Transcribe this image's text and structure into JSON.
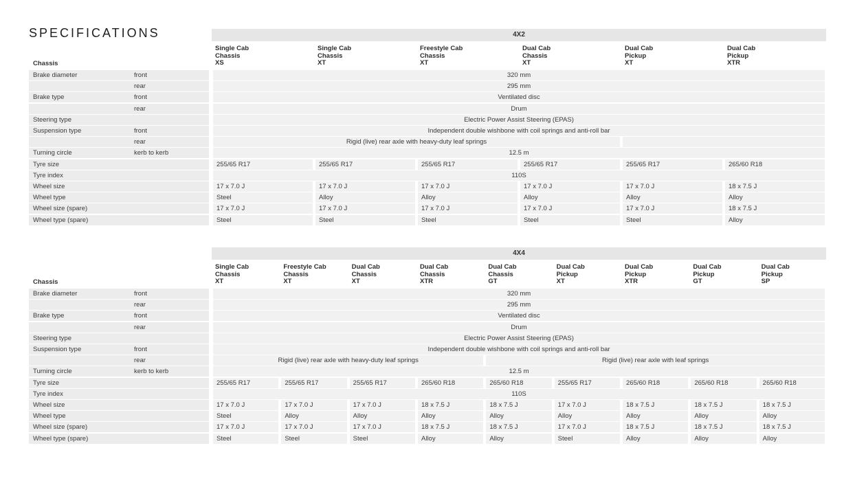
{
  "page": {
    "title": "SPECIFICATIONS"
  },
  "tables": [
    {
      "group": "4X2",
      "chassis_label": "Chassis",
      "columns": [
        [
          "Single Cab",
          "Chassis",
          "XS"
        ],
        [
          "Single Cab",
          "Chassis",
          "XT"
        ],
        [
          "Freestyle Cab",
          "Chassis",
          "XT"
        ],
        [
          "Dual Cab",
          "Chassis",
          "XT"
        ],
        [
          "Dual Cab",
          "Pickup",
          "XT"
        ],
        [
          "Dual Cab",
          "Pickup",
          "XTR"
        ]
      ],
      "rows": [
        {
          "label": "Brake diameter",
          "sub": "front",
          "cells": [
            {
              "span": [
                0,
                6
              ],
              "text": "320 mm",
              "center": true
            }
          ]
        },
        {
          "label": "",
          "sub": "rear",
          "cells": [
            {
              "span": [
                0,
                6
              ],
              "text": "295 mm",
              "center": true
            }
          ]
        },
        {
          "label": "Brake type",
          "sub": "front",
          "cells": [
            {
              "span": [
                0,
                6
              ],
              "text": "Ventilated disc",
              "center": true
            }
          ]
        },
        {
          "label": "",
          "sub": "rear",
          "cells": [
            {
              "span": [
                0,
                6
              ],
              "text": "Drum",
              "center": true
            }
          ]
        },
        {
          "label": "Steering type",
          "sub": "",
          "cells": [
            {
              "span": [
                0,
                6
              ],
              "text": "Electric Power Assist Steering (EPAS)",
              "center": true
            }
          ]
        },
        {
          "label": "Suspension type",
          "sub": "front",
          "cells": [
            {
              "span": [
                0,
                6
              ],
              "text": "Independent double wishbone with coil springs and anti-roll bar",
              "center": true
            }
          ]
        },
        {
          "label": "",
          "sub": "rear",
          "cells": [
            {
              "span": [
                0,
                4
              ],
              "text": "Rigid (live) rear axle with heavy-duty leaf springs",
              "center": true
            },
            {
              "span": [
                4,
                6
              ],
              "text": "",
              "center": true
            }
          ]
        },
        {
          "label": "Turning circle",
          "sub": "kerb to kerb",
          "cells": [
            {
              "span": [
                0,
                6
              ],
              "text": "12.5 m",
              "center": true
            }
          ]
        },
        {
          "label": "Tyre size",
          "sub": "",
          "cells": [
            "255/65 R17",
            "255/65 R17",
            "255/65 R17",
            "255/65 R17",
            "255/65 R17",
            "265/60 R18"
          ]
        },
        {
          "label": "Tyre index",
          "sub": "",
          "cells": [
            {
              "span": [
                0,
                6
              ],
              "text": "110S",
              "center": true
            }
          ]
        },
        {
          "label": "Wheel size",
          "sub": "",
          "cells": [
            "17 x 7.0 J",
            "17 x 7.0 J",
            "17 x 7.0 J",
            "17 x 7.0 J",
            "17 x 7.0 J",
            "18 x 7.5 J"
          ]
        },
        {
          "label": "Wheel type",
          "sub": "",
          "cells": [
            "Steel",
            "Alloy",
            "Alloy",
            "Alloy",
            "Alloy",
            "Alloy"
          ]
        },
        {
          "label": "Wheel size (spare)",
          "sub": "",
          "cells": [
            "17 x 7.0 J",
            "17 x 7.0 J",
            "17 x 7.0 J",
            "17 x 7.0 J",
            "17 x 7.0 J",
            "18 x 7.5 J"
          ]
        },
        {
          "label": "Wheel type (spare)",
          "sub": "",
          "cells": [
            "Steel",
            "Steel",
            "Steel",
            "Steel",
            "Steel",
            "Alloy"
          ]
        }
      ]
    },
    {
      "group": "4X4",
      "chassis_label": "Chassis",
      "columns": [
        [
          "Single Cab",
          "Chassis",
          "XT"
        ],
        [
          "Freestyle Cab",
          "Chassis",
          "XT"
        ],
        [
          "Dual Cab",
          "Chassis",
          "XT"
        ],
        [
          "Dual Cab",
          "Chassis",
          "XTR"
        ],
        [
          "Dual Cab",
          "Chassis",
          "GT"
        ],
        [
          "Dual Cab",
          "Pickup",
          "XT"
        ],
        [
          "Dual Cab",
          "Pickup",
          "XTR"
        ],
        [
          "Dual Cab",
          "Pickup",
          "GT"
        ],
        [
          "Dual Cab",
          "Pickup",
          "SP"
        ]
      ],
      "rows": [
        {
          "label": "Brake diameter",
          "sub": "front",
          "cells": [
            {
              "span": [
                0,
                9
              ],
              "text": "320 mm",
              "center": true
            }
          ]
        },
        {
          "label": "",
          "sub": "rear",
          "cells": [
            {
              "span": [
                0,
                9
              ],
              "text": "295 mm",
              "center": true
            }
          ]
        },
        {
          "label": "Brake type",
          "sub": "front",
          "cells": [
            {
              "span": [
                0,
                9
              ],
              "text": "Ventilated disc",
              "center": true
            }
          ]
        },
        {
          "label": "",
          "sub": "rear",
          "cells": [
            {
              "span": [
                0,
                9
              ],
              "text": "Drum",
              "center": true
            }
          ]
        },
        {
          "label": "Steering type",
          "sub": "",
          "cells": [
            {
              "span": [
                0,
                9
              ],
              "text": "Electric Power Assist Steering (EPAS)",
              "center": true
            }
          ]
        },
        {
          "label": "Suspension type",
          "sub": "front",
          "cells": [
            {
              "span": [
                0,
                9
              ],
              "text": "Independent double wishbone with coil springs and anti-roll bar",
              "center": true
            }
          ]
        },
        {
          "label": "",
          "sub": "rear",
          "cells": [
            {
              "span": [
                0,
                4
              ],
              "text": "Rigid (live) rear axle with heavy-duty leaf springs",
              "center": true
            },
            {
              "span": [
                4,
                9
              ],
              "text": "Rigid (live) rear axle with leaf springs",
              "center": true
            }
          ]
        },
        {
          "label": "Turning circle",
          "sub": "kerb to kerb",
          "cells": [
            {
              "span": [
                0,
                9
              ],
              "text": "12.5 m",
              "center": true
            }
          ]
        },
        {
          "label": "Tyre size",
          "sub": "",
          "cells": [
            "255/65 R17",
            "255/65 R17",
            "255/65 R17",
            "265/60 R18",
            "265/60 R18",
            "255/65 R17",
            "265/60 R18",
            "265/60 R18",
            "265/60 R18"
          ]
        },
        {
          "label": "Tyre index",
          "sub": "",
          "cells": [
            {
              "span": [
                0,
                9
              ],
              "text": "110S",
              "center": true
            }
          ]
        },
        {
          "label": "Wheel size",
          "sub": "",
          "cells": [
            "17 x 7.0 J",
            "17 x 7.0 J",
            "17 x 7.0 J",
            "18 x 7.5 J",
            "18 x 7.5 J",
            "17 x 7.0 J",
            "18 x 7.5 J",
            "18 x 7.5 J",
            "18 x 7.5 J"
          ]
        },
        {
          "label": "Wheel type",
          "sub": "",
          "cells": [
            "Steel",
            "Alloy",
            "Alloy",
            "Alloy",
            "Alloy",
            "Alloy",
            "Alloy",
            "Alloy",
            "Alloy"
          ]
        },
        {
          "label": "Wheel size (spare)",
          "sub": "",
          "cells": [
            "17 x 7.0 J",
            "17 x 7.0 J",
            "17 x 7.0 J",
            "18 x 7.5 J",
            "18 x 7.5 J",
            "17 x 7.0 J",
            "18 x 7.5 J",
            "18 x 7.5 J",
            "18 x 7.5 J"
          ]
        },
        {
          "label": "Wheel type (spare)",
          "sub": "",
          "cells": [
            "Steel",
            "Steel",
            "Steel",
            "Alloy",
            "Alloy",
            "Steel",
            "Alloy",
            "Alloy",
            "Alloy"
          ]
        }
      ]
    }
  ]
}
